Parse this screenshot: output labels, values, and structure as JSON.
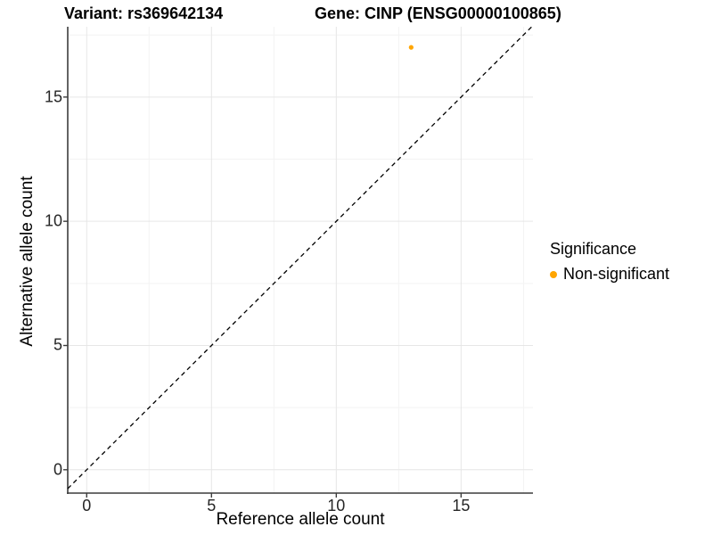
{
  "titles": {
    "variant": "Variant: rs369642134",
    "gene": "Gene: CINP (ENSG00000100865)"
  },
  "chart_data": {
    "type": "scatter",
    "title": "Variant: rs369642134  |  Gene: CINP (ENSG00000100865)",
    "xlabel": "Reference allele count",
    "ylabel": "Alternative allele count",
    "xlim": [
      -0.76,
      17.88
    ],
    "ylim": [
      -0.94,
      17.83
    ],
    "x_ticks": [
      0,
      5,
      10,
      15
    ],
    "y_ticks": [
      0,
      5,
      10,
      15
    ],
    "x_minor_ticks": [
      2.5,
      7.5,
      12.5,
      17.5
    ],
    "y_minor_ticks": [
      2.5,
      7.5,
      12.5,
      17.5
    ],
    "grid": true,
    "series": [
      {
        "name": "Non-significant",
        "color": "#FFA500",
        "points": [
          {
            "x": 13,
            "y": 17
          }
        ]
      }
    ],
    "identity_line": {
      "style": "dashed",
      "color": "#000000",
      "equation": "y = x"
    },
    "legend": {
      "position": "right",
      "title": "Significance",
      "items": [
        {
          "label": "Non-significant",
          "color": "#FFA500"
        }
      ]
    },
    "colors": {
      "axis_line": "#3c3c3c",
      "grid_major": "#e6e6e6",
      "grid_minor": "#f3f3f3",
      "tick_text": "#262626",
      "point": "#FFA500"
    }
  }
}
